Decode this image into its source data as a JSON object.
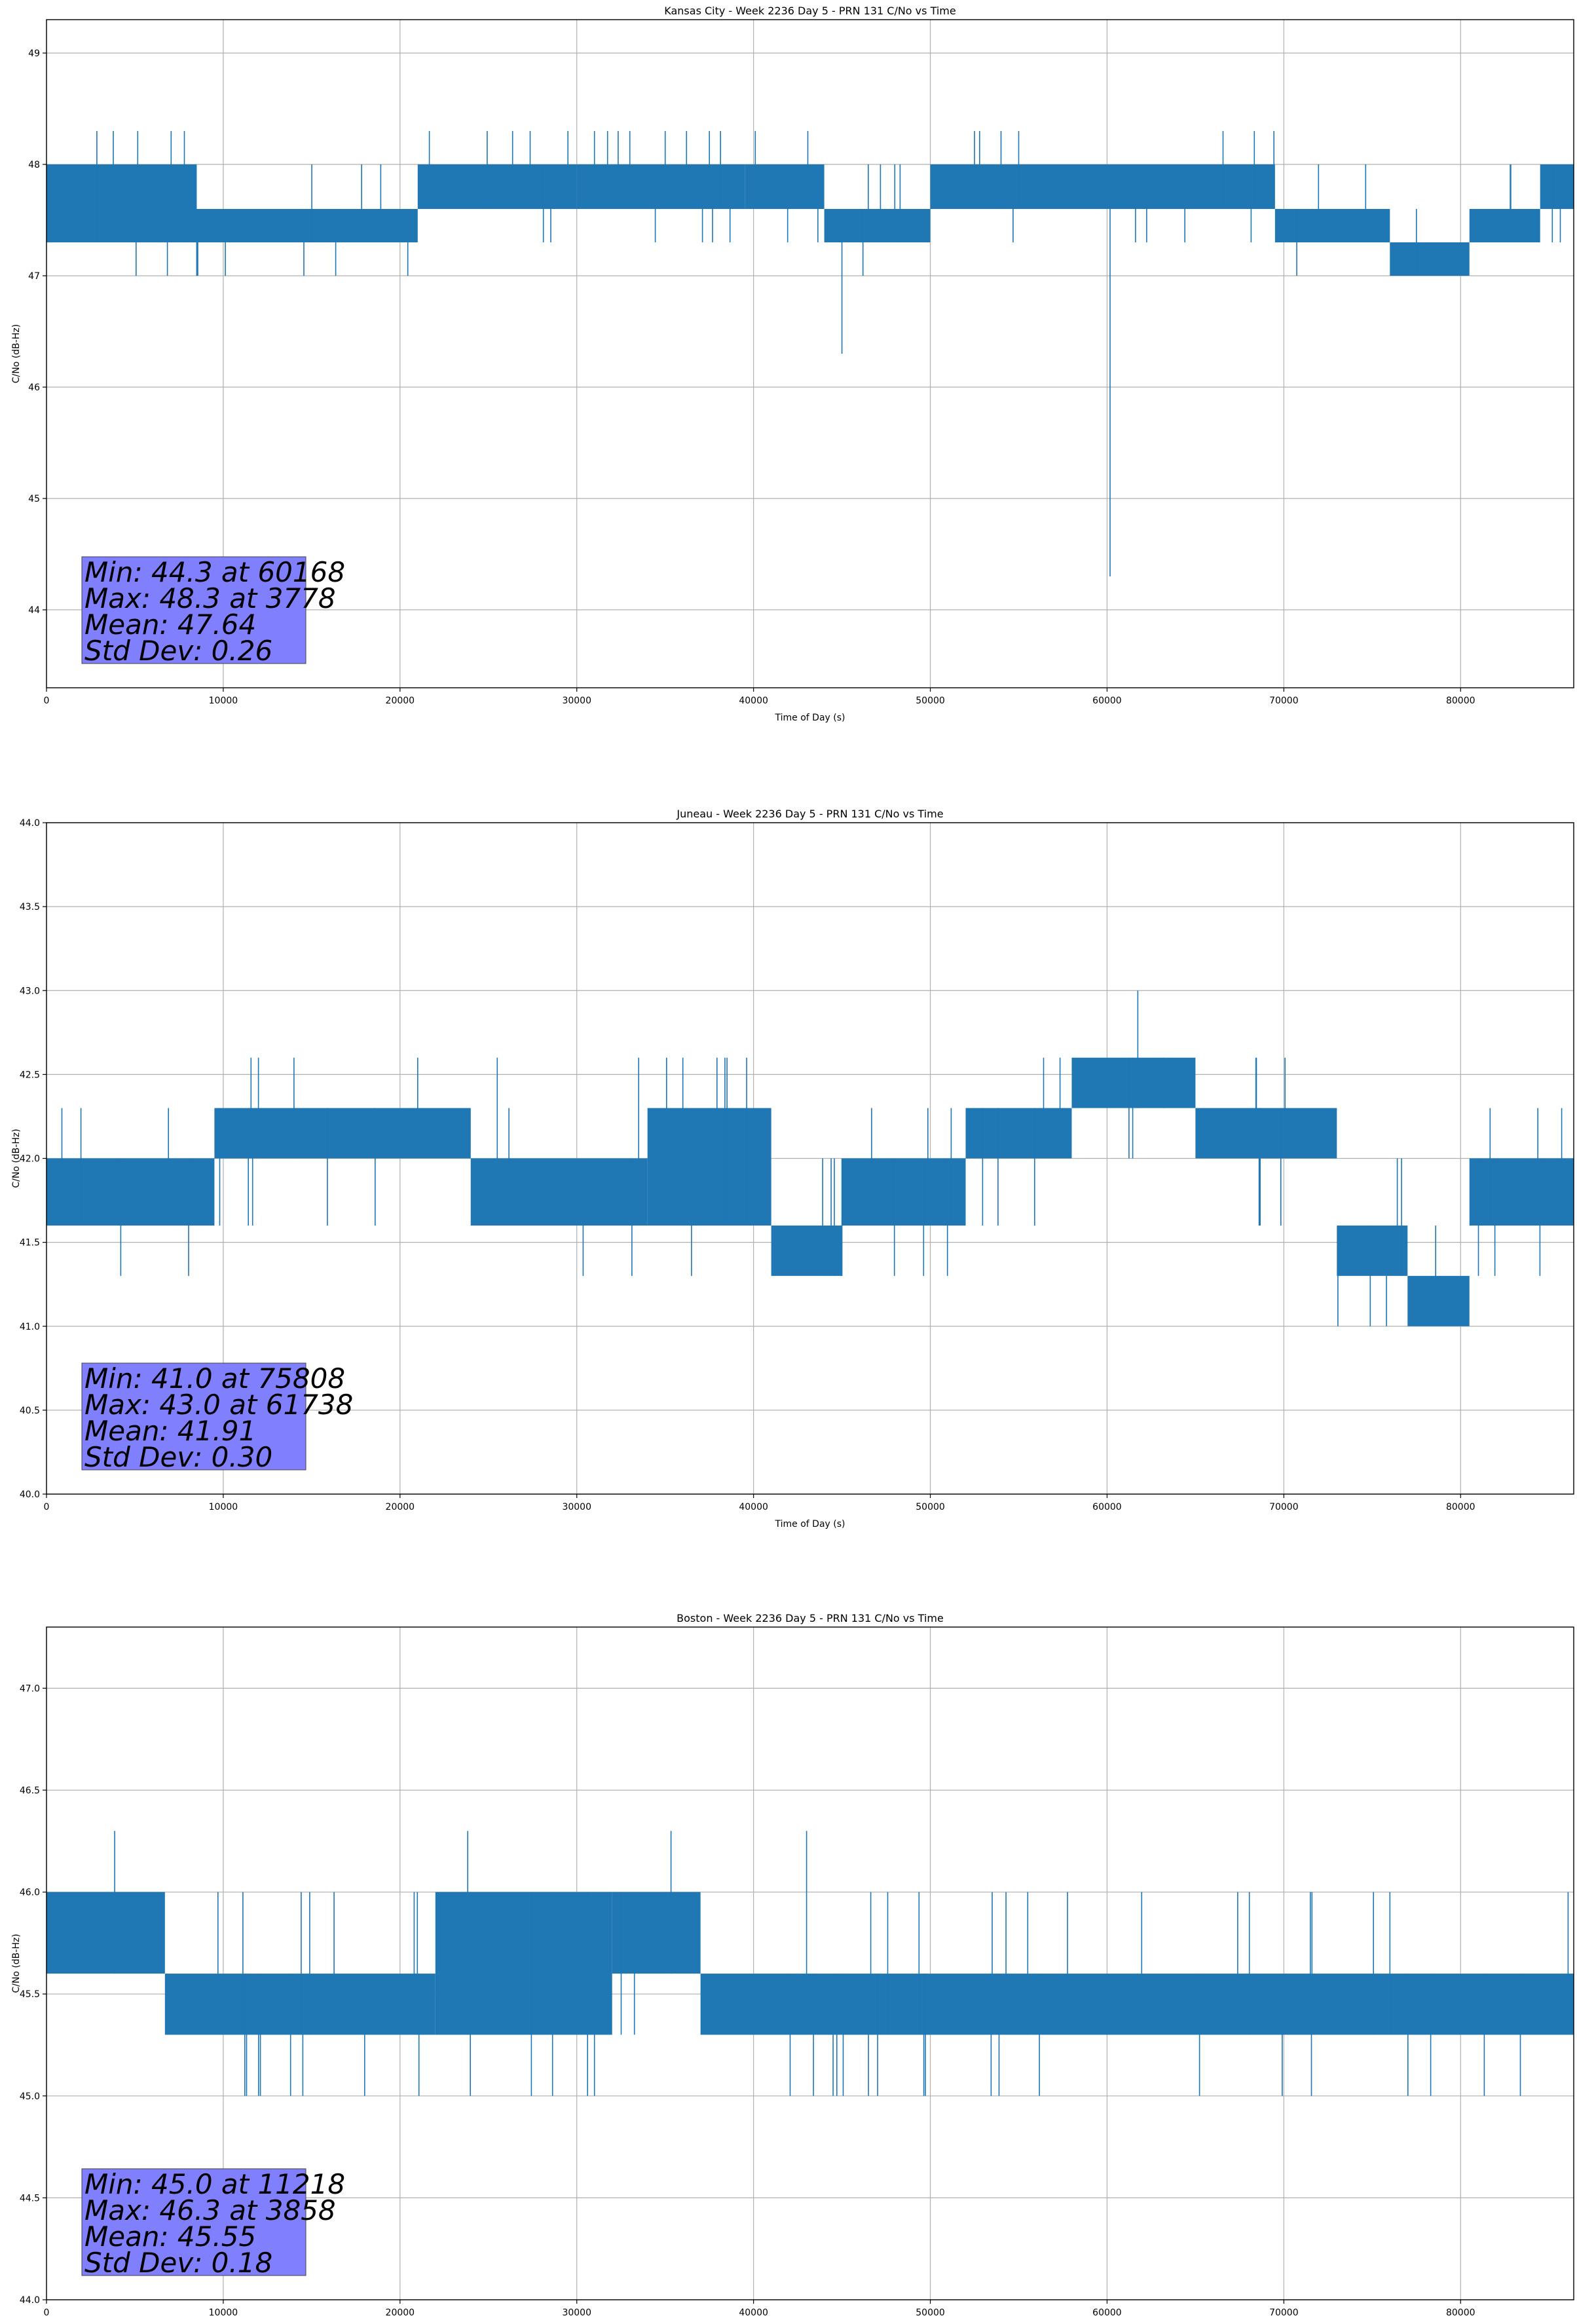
{
  "chart_data": [
    {
      "type": "line",
      "title": "Kansas City - Week 2236 Day 5 - PRN 131 C/No vs Time",
      "xlabel": "Time of Day (s)",
      "ylabel": "C/No (dB-Hz)",
      "xlim": [
        0,
        86400
      ],
      "ylim": [
        43.3,
        49.3
      ],
      "xticks": [
        0,
        10000,
        20000,
        30000,
        40000,
        50000,
        60000,
        70000,
        80000
      ],
      "yticks": [
        44,
        45,
        46,
        47,
        48,
        49
      ],
      "ytick_labels": [
        "44",
        "45",
        "46",
        "47",
        "48",
        "49"
      ],
      "grid": true,
      "series_color": "#1f77b4",
      "stats_box_color": "#8080ff",
      "stats": [
        "Min: 44.3 at 60168",
        "Max: 48.3 at 3778",
        "Mean: 47.64",
        "Std Dev: 0.26"
      ],
      "levels": [
        47.0,
        47.3,
        47.6,
        48.0,
        48.3
      ],
      "segments": [
        {
          "x": [
            0,
            8500
          ],
          "lo": 47.3,
          "hi": 48.0
        },
        {
          "x": [
            8500,
            21000
          ],
          "lo": 47.3,
          "hi": 47.6
        },
        {
          "x": [
            21000,
            30000
          ],
          "lo": 47.6,
          "hi": 48.0
        },
        {
          "x": [
            30000,
            39500
          ],
          "lo": 47.6,
          "hi": 48.0
        },
        {
          "x": [
            39500,
            44000
          ],
          "lo": 47.6,
          "hi": 48.0
        },
        {
          "x": [
            44000,
            50000
          ],
          "lo": 47.3,
          "hi": 47.6
        },
        {
          "x": [
            50000,
            69500
          ],
          "lo": 47.6,
          "hi": 48.0
        },
        {
          "x": [
            69500,
            76000
          ],
          "lo": 47.3,
          "hi": 47.6
        },
        {
          "x": [
            76000,
            80500
          ],
          "lo": 47.0,
          "hi": 47.3
        },
        {
          "x": [
            80500,
            84500
          ],
          "lo": 47.3,
          "hi": 47.6
        },
        {
          "x": [
            84500,
            86400
          ],
          "lo": 47.6,
          "hi": 48.0
        }
      ],
      "events": [
        [
          60168,
          44.3
        ],
        [
          45000,
          46.3
        ],
        [
          3778,
          48.3
        ],
        [
          29500,
          48.3
        ],
        [
          31000,
          48.3
        ],
        [
          33000,
          48.3
        ],
        [
          35000,
          48.3
        ],
        [
          37500,
          48.3
        ],
        [
          52500,
          48.3
        ],
        [
          54000,
          48.3
        ],
        [
          55000,
          48.3
        ]
      ]
    },
    {
      "type": "line",
      "title": "Juneau - Week 2236 Day 5 - PRN 131 C/No vs Time",
      "xlabel": "Time of Day (s)",
      "ylabel": "C/No (dB-Hz)",
      "xlim": [
        0,
        86400
      ],
      "ylim": [
        40.0,
        44.0
      ],
      "xticks": [
        0,
        10000,
        20000,
        30000,
        40000,
        50000,
        60000,
        70000,
        80000
      ],
      "yticks": [
        40.0,
        40.5,
        41.0,
        41.5,
        42.0,
        42.5,
        43.0,
        43.5,
        44.0
      ],
      "ytick_labels": [
        "40.0",
        "40.5",
        "41.0",
        "41.5",
        "42.0",
        "42.5",
        "43.0",
        "43.5",
        "44.0"
      ],
      "grid": true,
      "series_color": "#1f77b4",
      "stats_box_color": "#8080ff",
      "stats": [
        "Min: 41.0 at 75808",
        "Max: 43.0 at 61738",
        "Mean: 41.91",
        "Std Dev: 0.30"
      ],
      "levels": [
        41.0,
        41.3,
        41.6,
        42.0,
        42.3,
        42.6
      ],
      "segments": [
        {
          "x": [
            0,
            9500
          ],
          "lo": 41.6,
          "hi": 42.0
        },
        {
          "x": [
            9500,
            24000
          ],
          "lo": 42.0,
          "hi": 42.3
        },
        {
          "x": [
            24000,
            34000
          ],
          "lo": 41.6,
          "hi": 42.0
        },
        {
          "x": [
            34000,
            41000
          ],
          "lo": 41.6,
          "hi": 42.3
        },
        {
          "x": [
            41000,
            45000
          ],
          "lo": 41.3,
          "hi": 41.6
        },
        {
          "x": [
            45000,
            52000
          ],
          "lo": 41.6,
          "hi": 42.0
        },
        {
          "x": [
            52000,
            58000
          ],
          "lo": 42.0,
          "hi": 42.3
        },
        {
          "x": [
            58000,
            65000
          ],
          "lo": 42.3,
          "hi": 42.6
        },
        {
          "x": [
            65000,
            73000
          ],
          "lo": 42.0,
          "hi": 42.3
        },
        {
          "x": [
            73000,
            77000
          ],
          "lo": 41.3,
          "hi": 41.6
        },
        {
          "x": [
            77000,
            80500
          ],
          "lo": 41.0,
          "hi": 41.3
        },
        {
          "x": [
            80500,
            86400
          ],
          "lo": 41.6,
          "hi": 42.0
        }
      ],
      "events": [
        [
          61738,
          43.0
        ],
        [
          75808,
          41.0
        ],
        [
          14000,
          42.6
        ],
        [
          21000,
          42.6
        ],
        [
          25500,
          42.6
        ],
        [
          33500,
          42.6
        ],
        [
          36000,
          42.6
        ],
        [
          38500,
          42.6
        ]
      ]
    },
    {
      "type": "line",
      "title": "Boston - Week 2236 Day 5 - PRN 131 C/No vs Time",
      "xlabel": "Time of Day (s)",
      "ylabel": "C/No (dB-Hz)",
      "xlim": [
        0,
        86400
      ],
      "ylim": [
        44.0,
        47.3
      ],
      "xticks": [
        0,
        10000,
        20000,
        30000,
        40000,
        50000,
        60000,
        70000,
        80000
      ],
      "yticks": [
        44.0,
        44.5,
        45.0,
        45.5,
        46.0,
        46.5,
        47.0
      ],
      "ytick_labels": [
        "44.0",
        "44.5",
        "45.0",
        "45.5",
        "46.0",
        "46.5",
        "47.0"
      ],
      "grid": true,
      "series_color": "#1f77b4",
      "stats_box_color": "#8080ff",
      "stats": [
        "Min: 45.0 at 11218",
        "Max: 46.3 at 3858",
        "Mean: 45.55",
        "Std Dev: 0.18"
      ],
      "levels": [
        45.0,
        45.3,
        45.6,
        46.0,
        46.3
      ],
      "segments": [
        {
          "x": [
            0,
            6700
          ],
          "lo": 45.6,
          "hi": 46.0
        },
        {
          "x": [
            6700,
            22000
          ],
          "lo": 45.3,
          "hi": 45.6
        },
        {
          "x": [
            22000,
            32000
          ],
          "lo": 45.3,
          "hi": 46.0
        },
        {
          "x": [
            32000,
            37000
          ],
          "lo": 45.6,
          "hi": 46.0
        },
        {
          "x": [
            37000,
            86400
          ],
          "lo": 45.3,
          "hi": 45.6
        }
      ],
      "events": [
        [
          3858,
          46.3
        ],
        [
          43000,
          46.3
        ],
        [
          11218,
          45.0
        ],
        [
          12000,
          45.0
        ],
        [
          14500,
          45.0
        ],
        [
          18000,
          45.0
        ],
        [
          44500,
          45.0
        ],
        [
          46500,
          45.0
        ]
      ]
    }
  ]
}
